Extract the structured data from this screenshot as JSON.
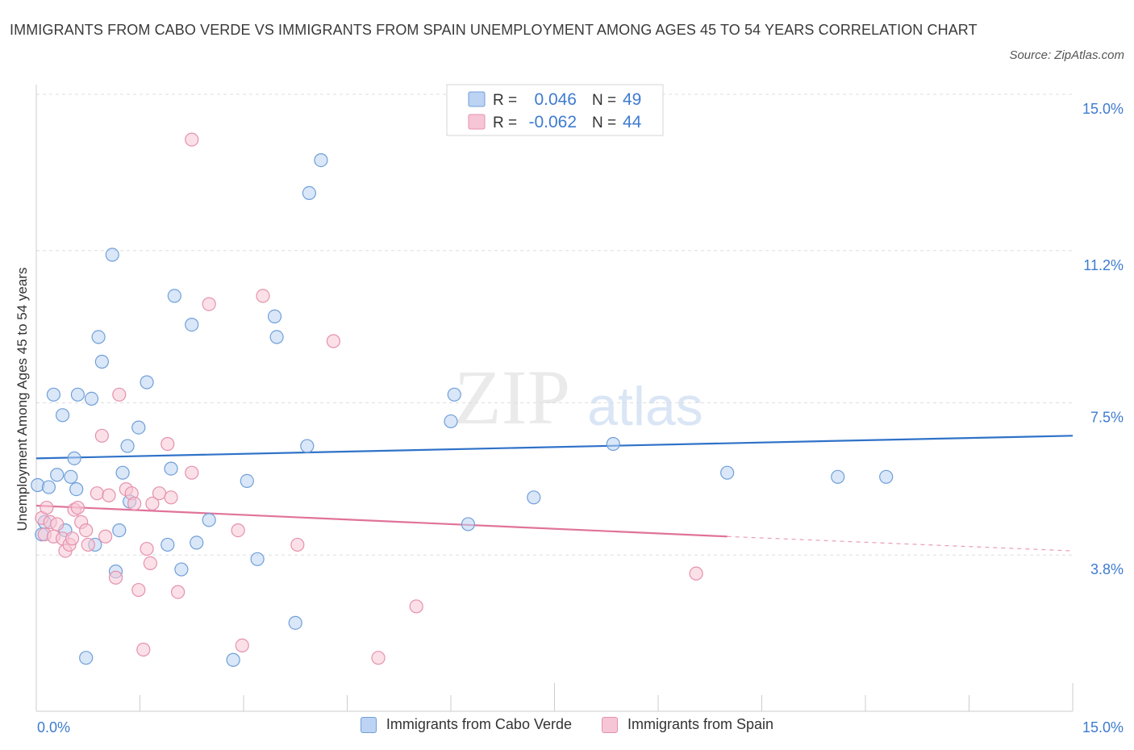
{
  "title": "IMMIGRANTS FROM CABO VERDE VS IMMIGRANTS FROM SPAIN UNEMPLOYMENT AMONG AGES 45 TO 54 YEARS CORRELATION CHART",
  "source": "Source: ZipAtlas.com",
  "watermark": {
    "zip": "ZIP",
    "atlas": "atlas"
  },
  "colors": {
    "blue_fill": "#bcd3f3",
    "blue_stroke": "#6f9fd8",
    "blue_line": "#2f72c8",
    "pink_fill": "#f7c6d6",
    "pink_stroke": "#e591ad",
    "pink_line": "#e0739a",
    "axis_text": "#3e7bd0",
    "grid": "#dddddd"
  },
  "legend_top": [
    {
      "r_label": "R =",
      "r_value": "0.046",
      "n_label": "N =",
      "n_value": "49"
    },
    {
      "r_label": "R =",
      "r_value": "-0.062",
      "n_label": "N =",
      "n_value": "44"
    }
  ],
  "chart_data": {
    "type": "scatter",
    "title": "IMMIGRANTS FROM CABO VERDE VS IMMIGRANTS FROM SPAIN UNEMPLOYMENT AMONG AGES 45 TO 54 YEARS CORRELATION CHART",
    "xlabel": "",
    "ylabel": "Unemployment Among Ages 45 to 54 years",
    "xlim": [
      0,
      15
    ],
    "ylim": [
      0,
      15
    ],
    "x_tick_labels": [
      "0.0%",
      "15.0%"
    ],
    "y_ticks": [
      {
        "value": 15.0,
        "label": "15.0%"
      },
      {
        "value": 11.2,
        "label": "11.2%"
      },
      {
        "value": 7.5,
        "label": "7.5%"
      },
      {
        "value": 3.8,
        "label": "3.8%"
      }
    ],
    "grid": true,
    "series": [
      {
        "name": "Immigrants from Cabo Verde",
        "color": "blue",
        "r": 0.046,
        "n": 49,
        "trend": {
          "x": [
            0.0,
            15.0
          ],
          "y": [
            6.15,
            6.7
          ]
        },
        "points": [
          [
            0.02,
            5.5
          ],
          [
            0.08,
            4.3
          ],
          [
            0.12,
            4.6
          ],
          [
            0.18,
            5.45
          ],
          [
            0.25,
            7.7
          ],
          [
            0.3,
            5.75
          ],
          [
            0.38,
            7.2
          ],
          [
            0.42,
            4.4
          ],
          [
            0.5,
            5.7
          ],
          [
            0.55,
            6.15
          ],
          [
            0.58,
            5.4
          ],
          [
            0.6,
            7.7
          ],
          [
            0.72,
            1.3
          ],
          [
            0.8,
            7.6
          ],
          [
            0.85,
            4.05
          ],
          [
            0.9,
            9.1
          ],
          [
            0.95,
            8.5
          ],
          [
            1.1,
            11.1
          ],
          [
            1.15,
            3.4
          ],
          [
            1.2,
            4.4
          ],
          [
            1.25,
            5.8
          ],
          [
            1.32,
            6.45
          ],
          [
            1.35,
            5.1
          ],
          [
            1.48,
            6.9
          ],
          [
            1.6,
            8.0
          ],
          [
            1.9,
            4.05
          ],
          [
            1.95,
            5.9
          ],
          [
            2.0,
            10.1
          ],
          [
            2.1,
            3.45
          ],
          [
            2.25,
            9.4
          ],
          [
            2.32,
            4.1
          ],
          [
            2.5,
            4.65
          ],
          [
            2.85,
            1.25
          ],
          [
            3.05,
            5.6
          ],
          [
            3.2,
            3.7
          ],
          [
            3.45,
            9.6
          ],
          [
            3.48,
            9.1
          ],
          [
            3.75,
            2.15
          ],
          [
            3.92,
            6.45
          ],
          [
            3.95,
            12.6
          ],
          [
            4.12,
            13.4
          ],
          [
            6.0,
            7.05
          ],
          [
            6.05,
            7.7
          ],
          [
            6.25,
            4.55
          ],
          [
            7.2,
            5.2
          ],
          [
            8.35,
            6.5
          ],
          [
            10.0,
            5.8
          ],
          [
            11.6,
            5.7
          ],
          [
            12.3,
            5.7
          ]
        ]
      },
      {
        "name": "Immigrants from Spain",
        "color": "pink",
        "r": -0.062,
        "n": 44,
        "trend": {
          "x": [
            0.0,
            10.0
          ],
          "y": [
            5.0,
            4.25
          ],
          "dashed_to": {
            "x": 15.0,
            "y": 3.9
          }
        },
        "points": [
          [
            0.08,
            4.7
          ],
          [
            0.12,
            4.3
          ],
          [
            0.15,
            4.95
          ],
          [
            0.2,
            4.6
          ],
          [
            0.25,
            4.25
          ],
          [
            0.3,
            4.55
          ],
          [
            0.38,
            4.2
          ],
          [
            0.42,
            3.9
          ],
          [
            0.48,
            4.05
          ],
          [
            0.52,
            4.2
          ],
          [
            0.55,
            4.9
          ],
          [
            0.6,
            4.95
          ],
          [
            0.65,
            4.6
          ],
          [
            0.72,
            4.4
          ],
          [
            0.75,
            4.05
          ],
          [
            0.88,
            5.3
          ],
          [
            0.95,
            6.7
          ],
          [
            1.0,
            4.25
          ],
          [
            1.05,
            5.25
          ],
          [
            1.15,
            3.25
          ],
          [
            1.2,
            7.7
          ],
          [
            1.3,
            5.4
          ],
          [
            1.38,
            5.3
          ],
          [
            1.42,
            5.05
          ],
          [
            1.48,
            2.95
          ],
          [
            1.55,
            1.5
          ],
          [
            1.6,
            3.95
          ],
          [
            1.65,
            3.6
          ],
          [
            1.68,
            5.05
          ],
          [
            1.78,
            5.3
          ],
          [
            1.9,
            6.5
          ],
          [
            1.95,
            5.2
          ],
          [
            2.05,
            2.9
          ],
          [
            2.25,
            5.8
          ],
          [
            2.25,
            13.9
          ],
          [
            2.5,
            9.9
          ],
          [
            2.92,
            4.4
          ],
          [
            2.98,
            1.6
          ],
          [
            3.28,
            10.1
          ],
          [
            3.78,
            4.05
          ],
          [
            4.3,
            9.0
          ],
          [
            4.95,
            1.3
          ],
          [
            5.5,
            2.55
          ],
          [
            9.55,
            3.35
          ]
        ]
      }
    ]
  },
  "legend_bottom": [
    "Immigrants from Cabo Verde",
    "Immigrants from Spain"
  ]
}
